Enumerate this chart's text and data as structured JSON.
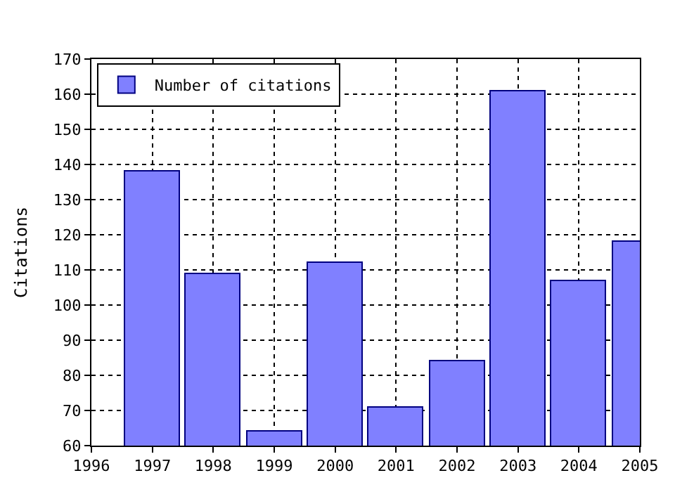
{
  "chart_data": {
    "type": "bar",
    "ylabel": "Citations",
    "x": [
      1997,
      1998,
      1999,
      2000,
      2001,
      2002,
      2003,
      2004,
      2005
    ],
    "series": [
      {
        "name": "Number of citations",
        "color": "#8080ff",
        "values": [
          138,
          109,
          64,
          112,
          71,
          84,
          161,
          107,
          118
        ]
      }
    ],
    "xlim": [
      1996,
      2005
    ],
    "xticks": [
      1996,
      1997,
      1998,
      1999,
      2000,
      2001,
      2002,
      2003,
      2004,
      2005
    ],
    "ylim": [
      60,
      170
    ],
    "yticks": [
      60,
      70,
      80,
      90,
      100,
      110,
      120,
      130,
      140,
      150,
      160,
      170
    ],
    "grid": true,
    "legend": "top left"
  }
}
